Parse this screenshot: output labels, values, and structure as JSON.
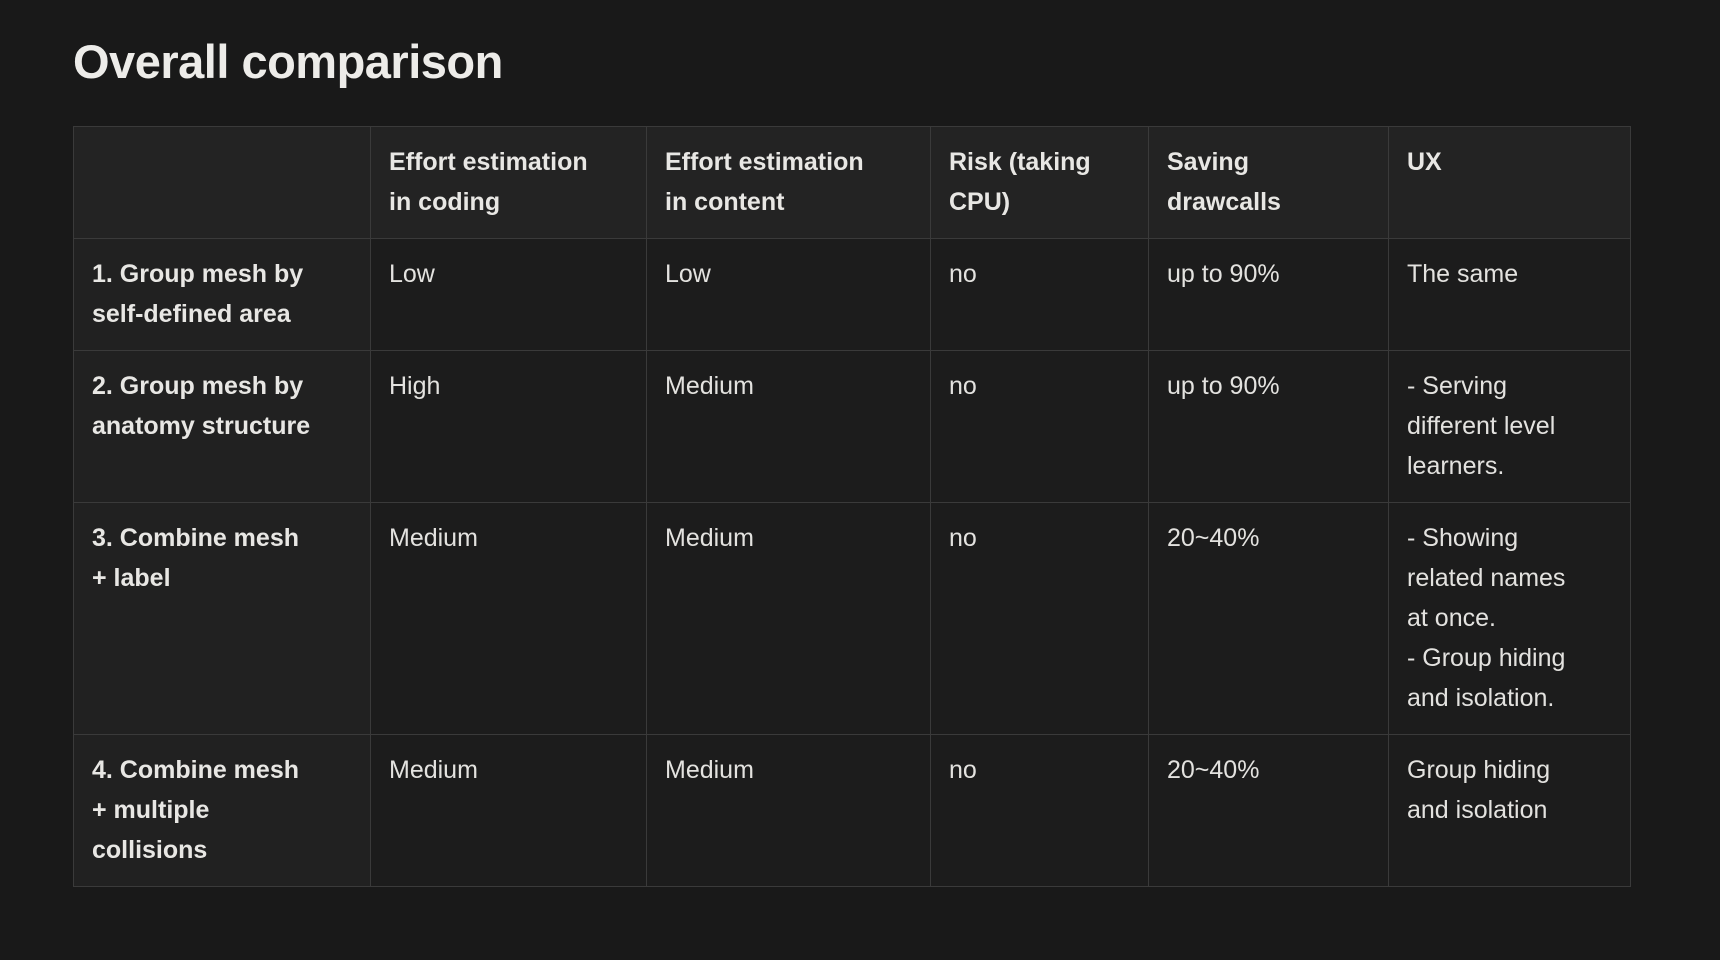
{
  "page": {
    "title": "Overall comparison"
  },
  "colors": {
    "page_background": "#191919",
    "header_cell_background": "#232323",
    "row_label_background": "#212121",
    "body_cell_background": "#1c1c1c",
    "table_border": "#3a3a3a",
    "text": "#e3e2df"
  },
  "table": {
    "columns": [
      "",
      "Effort estimation\nin coding",
      "Effort estimation\nin content",
      "Risk (taking\nCPU)",
      "Saving\ndrawcalls",
      "UX"
    ],
    "rows": [
      {
        "label": "1. Group mesh by\nself-defined area",
        "cells": [
          "Low",
          "Low",
          "no",
          "up to 90%",
          "The same"
        ]
      },
      {
        "label": "2. Group mesh by\nanatomy structure",
        "cells": [
          "High",
          "Medium",
          "no",
          "up to 90%",
          "- Serving\ndifferent level\nlearners."
        ]
      },
      {
        "label": "3. Combine mesh\n+ label",
        "cells": [
          "Medium",
          "Medium",
          "no",
          "20~40%",
          "- Showing\nrelated names\nat once.\n- Group hiding\nand isolation."
        ]
      },
      {
        "label": "4. Combine mesh\n+ multiple\ncollisions",
        "cells": [
          "Medium",
          "Medium",
          "no",
          "20~40%",
          "Group hiding\nand isolation"
        ]
      }
    ]
  }
}
